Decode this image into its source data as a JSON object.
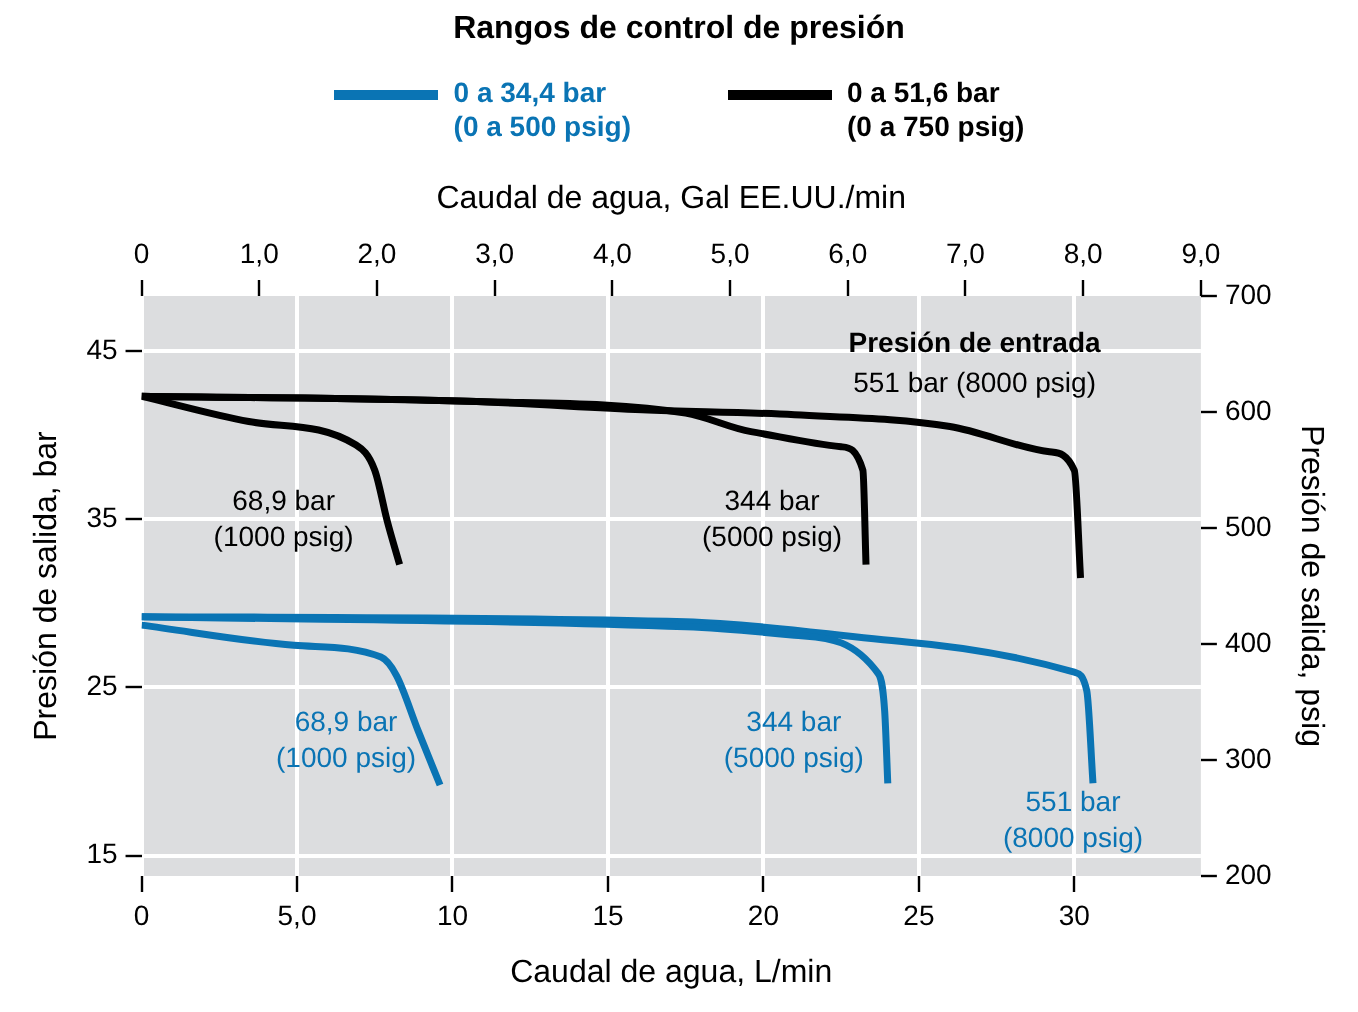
{
  "chart_data": {
    "type": "line",
    "title": "Rangos de control de presión",
    "xlabel": "Caudal de agua, L/min",
    "x2label": "Caudal de agua, Gal EE.UU./min",
    "ylabel": "Presión de salida, bar",
    "y2label": "Presión de salida, psig",
    "xlim": [
      0,
      34.07
    ],
    "xticks": [
      0,
      {
        "value": 5,
        "label": "5,0"
      },
      10,
      15,
      20,
      25,
      30
    ],
    "x2lim": [
      0,
      9
    ],
    "x2ticks": [
      0,
      {
        "value": 1,
        "label": "1,0"
      },
      {
        "value": 2,
        "label": "2,0"
      },
      {
        "value": 3,
        "label": "3,0"
      },
      {
        "value": 4,
        "label": "4,0"
      },
      {
        "value": 5,
        "label": "5,0"
      },
      {
        "value": 6,
        "label": "6,0"
      },
      {
        "value": 7,
        "label": "7,0"
      },
      {
        "value": 8,
        "label": "8,0"
      },
      {
        "value": 9,
        "label": "9,0"
      }
    ],
    "ylim": [
      13.79,
      48.26
    ],
    "yticks": [
      15,
      25,
      35,
      45
    ],
    "y2lim": [
      200,
      700
    ],
    "y2ticks": [
      200,
      300,
      400,
      500,
      600,
      700
    ],
    "grid": true,
    "legend": "top",
    "marker": "none",
    "line_style": "solid",
    "series": [
      {
        "name": "0 a 51,6 bar\n(0 a 750 psig)",
        "color": "#000000",
        "x": [
          0,
          3.45,
          6.9,
          7.5,
          7.9,
          8.3
        ],
        "values": [
          42.3,
          40.8,
          39.4,
          37.9,
          34.9,
          32.3
        ]
      },
      {
        "color": "#000000",
        "x": [
          0,
          10.5,
          17.5,
          19.6,
          22.5,
          23.2,
          23.3
        ],
        "values": [
          42.3,
          42.0,
          41.3,
          40.2,
          39.3,
          37.9,
          32.3
        ]
      },
      {
        "color": "#000000",
        "x": [
          0,
          10.5,
          16.1,
          21,
          26,
          29.2,
          30,
          30.2
        ],
        "values": [
          42.3,
          42.0,
          41.5,
          41.2,
          40.5,
          39.0,
          37.9,
          31.5
        ]
      },
      {
        "name": "0 a 34,4 bar\n(0 a 500 psig)",
        "color": "#0a74b4",
        "x": [
          0,
          4.9,
          7.7,
          8.2,
          8.9,
          9.6
        ],
        "values": [
          28.7,
          27.5,
          26.8,
          25.7,
          22.4,
          19.2
        ]
      },
      {
        "color": "#0a74b4",
        "x": [
          0,
          17.5,
          21,
          23.7,
          23.9,
          24
        ],
        "values": [
          29.2,
          28.6,
          28.1,
          25.8,
          23.6,
          19.3
        ]
      },
      {
        "color": "#0a74b4",
        "x": [
          0,
          17.5,
          24.6,
          30,
          30.4,
          30.6
        ],
        "values": [
          29.2,
          28.9,
          27.7,
          25.9,
          24.8,
          19.3
        ]
      }
    ],
    "annotations": [
      "68,9 bar\n(1000 psig)",
      "344 bar\n(5000 psig)",
      "Presión de entrada",
      "551 bar (8000 psig)",
      "68,9 bar\n(1000 psig)",
      "344 bar\n(5000 psig)",
      "551 bar\n(8000 psig)"
    ]
  }
}
